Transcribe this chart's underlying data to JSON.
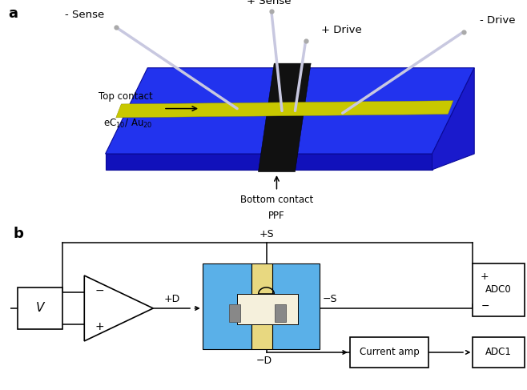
{
  "fig_width": 6.58,
  "fig_height": 4.87,
  "dpi": 100,
  "bg_color": "#ffffff",
  "panel_a": {
    "label": "a",
    "plate_top_color": "#2233ee",
    "plate_front_color": "#1111bb",
    "plate_right_color": "#1a1acc",
    "wire_color": "#c8c8e0",
    "wire_lw": 2.5,
    "black_strip": "#111111",
    "yellow_strip": "#c8c800",
    "labels": {
      "plus_sense": "+ Sense",
      "minus_sense": "- Sense",
      "plus_drive": "+ Drive",
      "minus_drive": "- Drive",
      "top_contact_1": "Top contact",
      "top_contact_2": "eC$_{10}$/ Au$_{20}$",
      "bottom_contact_1": "Bottom contact",
      "bottom_contact_2": "PPF"
    }
  },
  "panel_b": {
    "label": "b",
    "box_blue": "#5ab0e8",
    "box_yellow": "#e8d880",
    "box_cream": "#f5f0dc",
    "wire_color": "#000000",
    "labels": {
      "V": "V",
      "plusD": "+D",
      "minusD": "−D",
      "plusS": "+S",
      "minusS": "−S",
      "current_amp": "Current amp",
      "ADC0": "ADC0",
      "ADC1": "ADC1"
    }
  }
}
